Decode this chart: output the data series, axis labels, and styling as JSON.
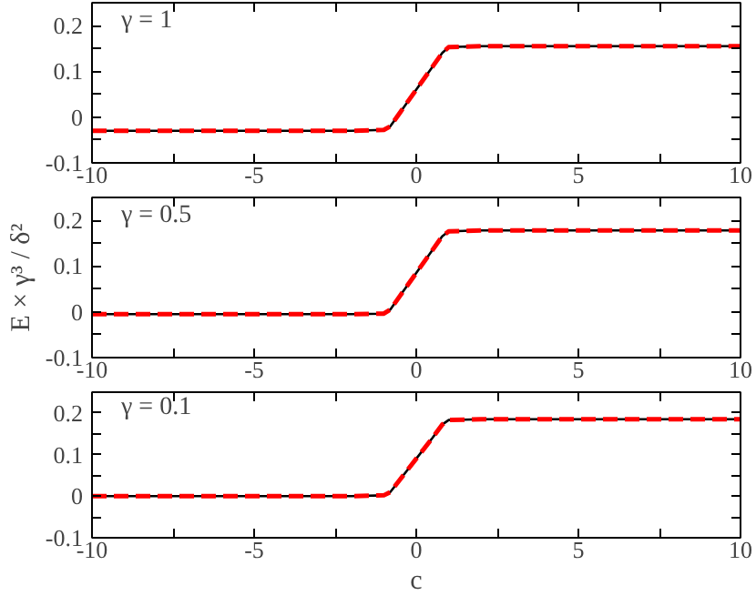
{
  "chart_data": [
    {
      "type": "line",
      "annotations": [
        "γ = 1"
      ],
      "x": [
        -10,
        -2,
        -1,
        -0.8,
        -0.5,
        0,
        0.5,
        0.8,
        1,
        2,
        10
      ],
      "series": [
        {
          "color": "#000000",
          "line_style": "solid",
          "values": [
            -0.03,
            -0.03,
            -0.028,
            -0.02,
            0.01,
            0.06,
            0.11,
            0.14,
            0.153,
            0.155,
            0.155
          ]
        },
        {
          "color": "#ff0000",
          "line_style": "dashed",
          "values": [
            -0.03,
            -0.03,
            -0.028,
            -0.02,
            0.01,
            0.06,
            0.11,
            0.14,
            0.153,
            0.155,
            0.155
          ]
        }
      ],
      "xlim": [
        -10,
        10
      ],
      "xticks": [
        -10,
        {
          "value": -7.5,
          "label": null
        },
        -5,
        {
          "value": -2.5,
          "label": null
        },
        0,
        {
          "value": 2.5,
          "label": null
        },
        5,
        {
          "value": 7.5,
          "label": null
        },
        10
      ],
      "ylim": [
        -0.1,
        0.25
      ],
      "yticks": [
        -0.1,
        {
          "value": -0.05,
          "label": null
        },
        0,
        {
          "value": 0.05,
          "label": null
        },
        0.1,
        {
          "value": 0.15,
          "label": null
        },
        0.2
      ]
    },
    {
      "type": "line",
      "annotations": [
        "γ = 0.5"
      ],
      "ylabel": "E × γ³ / δ²",
      "x": [
        -10,
        -2,
        -1,
        -0.8,
        -0.5,
        0,
        0.5,
        0.8,
        1,
        2,
        10
      ],
      "series": [
        {
          "color": "#000000",
          "line_style": "solid",
          "values": [
            -0.005,
            -0.005,
            -0.004,
            0.005,
            0.035,
            0.085,
            0.135,
            0.165,
            0.176,
            0.178,
            0.178
          ]
        },
        {
          "color": "#ff0000",
          "line_style": "dashed",
          "values": [
            -0.005,
            -0.005,
            -0.004,
            0.005,
            0.035,
            0.085,
            0.135,
            0.165,
            0.176,
            0.178,
            0.178
          ]
        }
      ],
      "xlim": [
        -10,
        10
      ],
      "xticks": [
        -10,
        {
          "value": -7.5,
          "label": null
        },
        -5,
        {
          "value": -2.5,
          "label": null
        },
        0,
        {
          "value": 2.5,
          "label": null
        },
        5,
        {
          "value": 7.5,
          "label": null
        },
        10
      ],
      "ylim": [
        -0.1,
        0.25
      ],
      "yticks": [
        -0.1,
        {
          "value": -0.05,
          "label": null
        },
        0,
        {
          "value": 0.05,
          "label": null
        },
        0.1,
        {
          "value": 0.15,
          "label": null
        },
        0.2
      ]
    },
    {
      "type": "line",
      "annotations": [
        "γ = 0.1"
      ],
      "xlabel": "c",
      "x": [
        -10,
        -2,
        -1,
        -0.8,
        -0.5,
        0,
        0.5,
        0.8,
        1,
        2,
        10
      ],
      "series": [
        {
          "color": "#000000",
          "line_style": "solid",
          "values": [
            0,
            0,
            0.002,
            0.01,
            0.04,
            0.09,
            0.14,
            0.172,
            0.183,
            0.185,
            0.185
          ]
        },
        {
          "color": "#ff0000",
          "line_style": "dashed",
          "values": [
            0,
            0,
            0.002,
            0.01,
            0.04,
            0.09,
            0.14,
            0.172,
            0.183,
            0.185,
            0.185
          ]
        }
      ],
      "xlim": [
        -10,
        10
      ],
      "xticks": [
        -10,
        {
          "value": -7.5,
          "label": null
        },
        -5,
        {
          "value": -2.5,
          "label": null
        },
        0,
        {
          "value": 2.5,
          "label": null
        },
        5,
        {
          "value": 7.5,
          "label": null
        },
        10
      ],
      "ylim": [
        -0.1,
        0.25
      ],
      "yticks": [
        -0.1,
        {
          "value": -0.05,
          "label": null
        },
        0,
        {
          "value": 0.05,
          "label": null
        },
        0.1,
        {
          "value": 0.15,
          "label": null
        },
        0.2
      ]
    }
  ]
}
